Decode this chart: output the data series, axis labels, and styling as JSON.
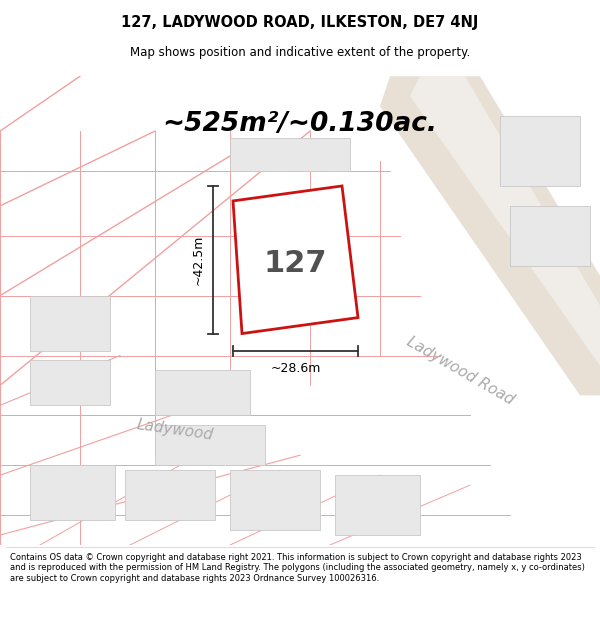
{
  "title": "127, LADYWOOD ROAD, ILKESTON, DE7 4NJ",
  "subtitle": "Map shows position and indicative extent of the property.",
  "area_text": "~525m²/~0.130ac.",
  "label_127": "127",
  "dim_height": "~42.5m",
  "dim_width": "~28.6m",
  "street_label": "Ladywood Road",
  "footer": "Contains OS data © Crown copyright and database right 2021. This information is subject to Crown copyright and database rights 2023 and is reproduced with the permission of HM Land Registry. The polygons (including the associated geometry, namely x, y co-ordinates) are subject to Crown copyright and database rights 2023 Ordnance Survey 100026316.",
  "map_bg": "#ffffff",
  "road_color": "#e8e0d5",
  "plot_line_color": "#f0a0a0",
  "building_fill": "#e8e8e8",
  "building_edge": "#c8c8c8",
  "highlight_fill": "#ffffff",
  "highlight_edge": "#cc1111",
  "title_bg": "#ffffff",
  "footer_bg": "#ffffff",
  "dim_color": "#333333",
  "street_label_color": "#aaaaaa"
}
